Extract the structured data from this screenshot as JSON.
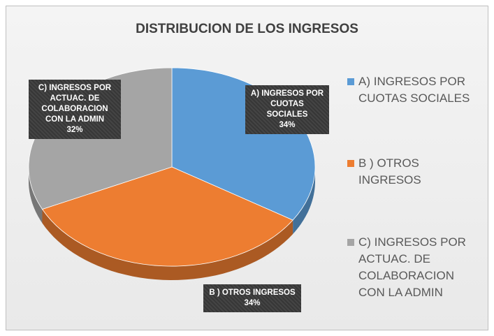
{
  "chart_data": {
    "type": "pie",
    "title": "DISTRIBUCION DE LOS INGRESOS",
    "categories": [
      "A)  INGRESOS POR CUOTAS SOCIALES",
      "B ) OTROS INGRESOS",
      "C) INGRESOS POR ACTUAC. DE COLABORACION CON LA ADMIN"
    ],
    "values": [
      34,
      34,
      32
    ],
    "value_labels": [
      "34%",
      "34%",
      "32%"
    ],
    "colors": [
      "#5b9bd5",
      "#ed7d31",
      "#a5a5a5"
    ],
    "legend": "right"
  }
}
